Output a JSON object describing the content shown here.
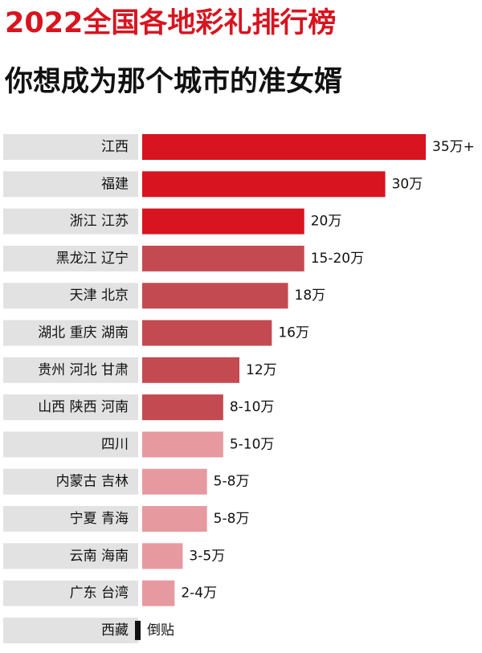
{
  "chart_data": {
    "type": "bar",
    "orientation": "horizontal",
    "title": "2022全国各地彩礼排行榜",
    "subtitle": "你想成为那个城市的准女婿",
    "categories": [
      "江西",
      "福建",
      "浙江 江苏",
      "黑龙江 辽宁",
      "天津 北京",
      "湖北 重庆 湖南",
      "贵州 河北 甘肃",
      "山西 陕西 河南",
      "四川",
      "内蒙古 吉林",
      "宁夏 青海",
      "云南 海南",
      "广东 台湾",
      "西藏"
    ],
    "values": [
      35,
      30,
      20,
      20,
      18,
      16,
      12,
      10,
      10,
      8,
      8,
      5,
      4,
      null
    ],
    "value_labels": [
      "35万+",
      "30万",
      "20万",
      "15-20万",
      "18万",
      "16万",
      "12万",
      "8-10万",
      "5-10万",
      "5-8万",
      "5-8万",
      "3-5万",
      "2-4万",
      "倒贴"
    ],
    "colors": [
      "#d7141f",
      "#d7141f",
      "#d7141f",
      "#c44a52",
      "#c44a52",
      "#c44a52",
      "#c44a52",
      "#c44a52",
      "#e69aa0",
      "#e69aa0",
      "#e69aa0",
      "#e69aa0",
      "#e69aa0",
      "#111111"
    ]
  }
}
